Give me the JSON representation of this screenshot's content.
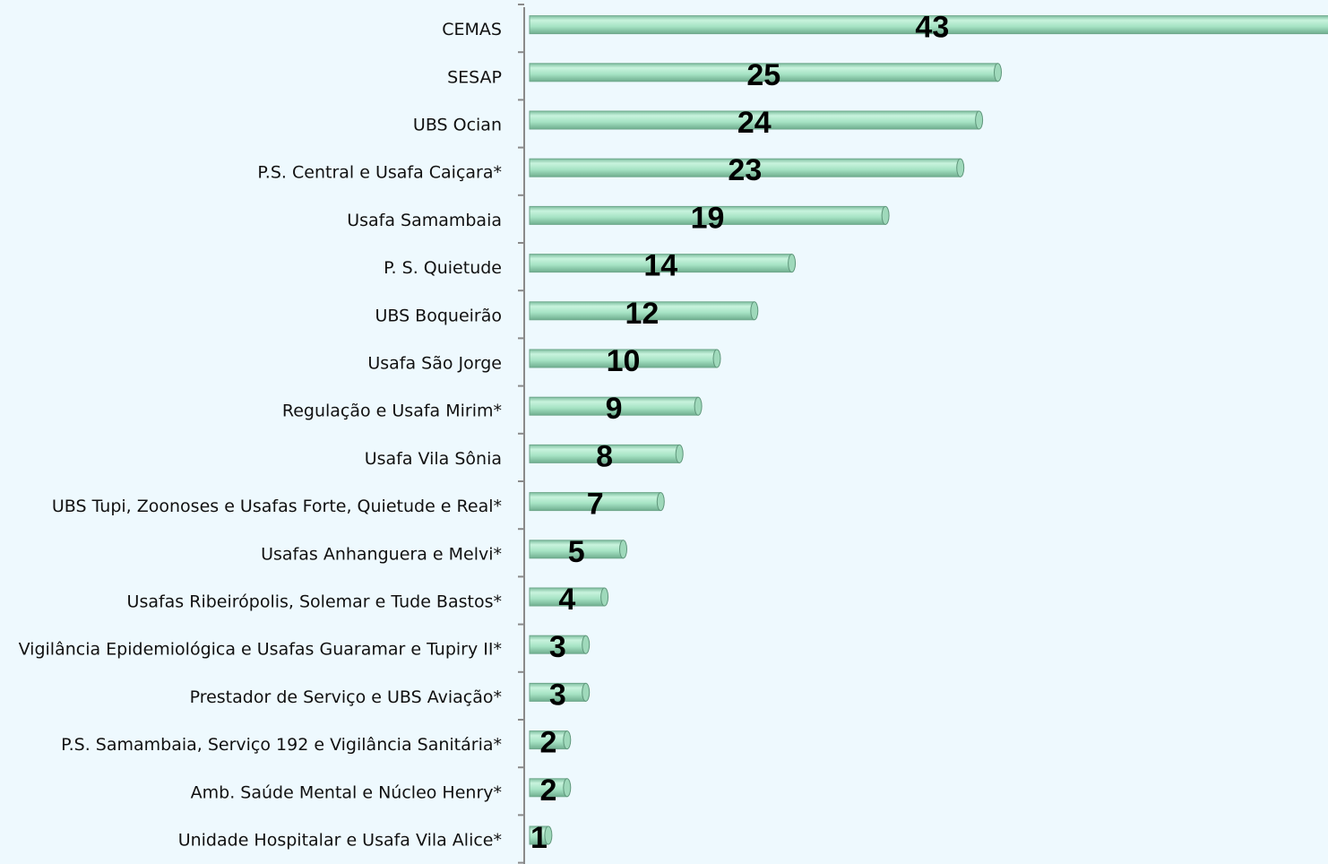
{
  "chart_data": {
    "type": "hbar",
    "categories": [
      "CEMAS",
      "SESAP",
      "UBS Ocian",
      "P.S. Central e Usafa Caiçara*",
      "Usafa Samambaia",
      "P. S. Quietude",
      "UBS Boqueirão",
      "Usafa São Jorge",
      "Regulação e Usafa Mirim*",
      "Usafa Vila Sônia",
      "UBS Tupi, Zoonoses e Usafas Forte, Quietude e Real*",
      "Usafas Anhanguera e Melvi*",
      "Usafas Ribeirópolis, Solemar e Tude Bastos*",
      "Vigilância Epidemiológica e Usafas Guaramar e Tupiry II*",
      "Prestador de Serviço e UBS Aviação*",
      "P.S. Samambaia, Serviço 192 e Vigilância Sanitária*",
      "Amb. Saúde Mental e Núcleo Henry*",
      "Unidade Hospitalar e Usafa Vila Alice*"
    ],
    "values": [
      43,
      25,
      24,
      23,
      19,
      14,
      12,
      10,
      9,
      8,
      7,
      5,
      4,
      3,
      3,
      2,
      2,
      1
    ],
    "color": "#a6e3c4"
  }
}
